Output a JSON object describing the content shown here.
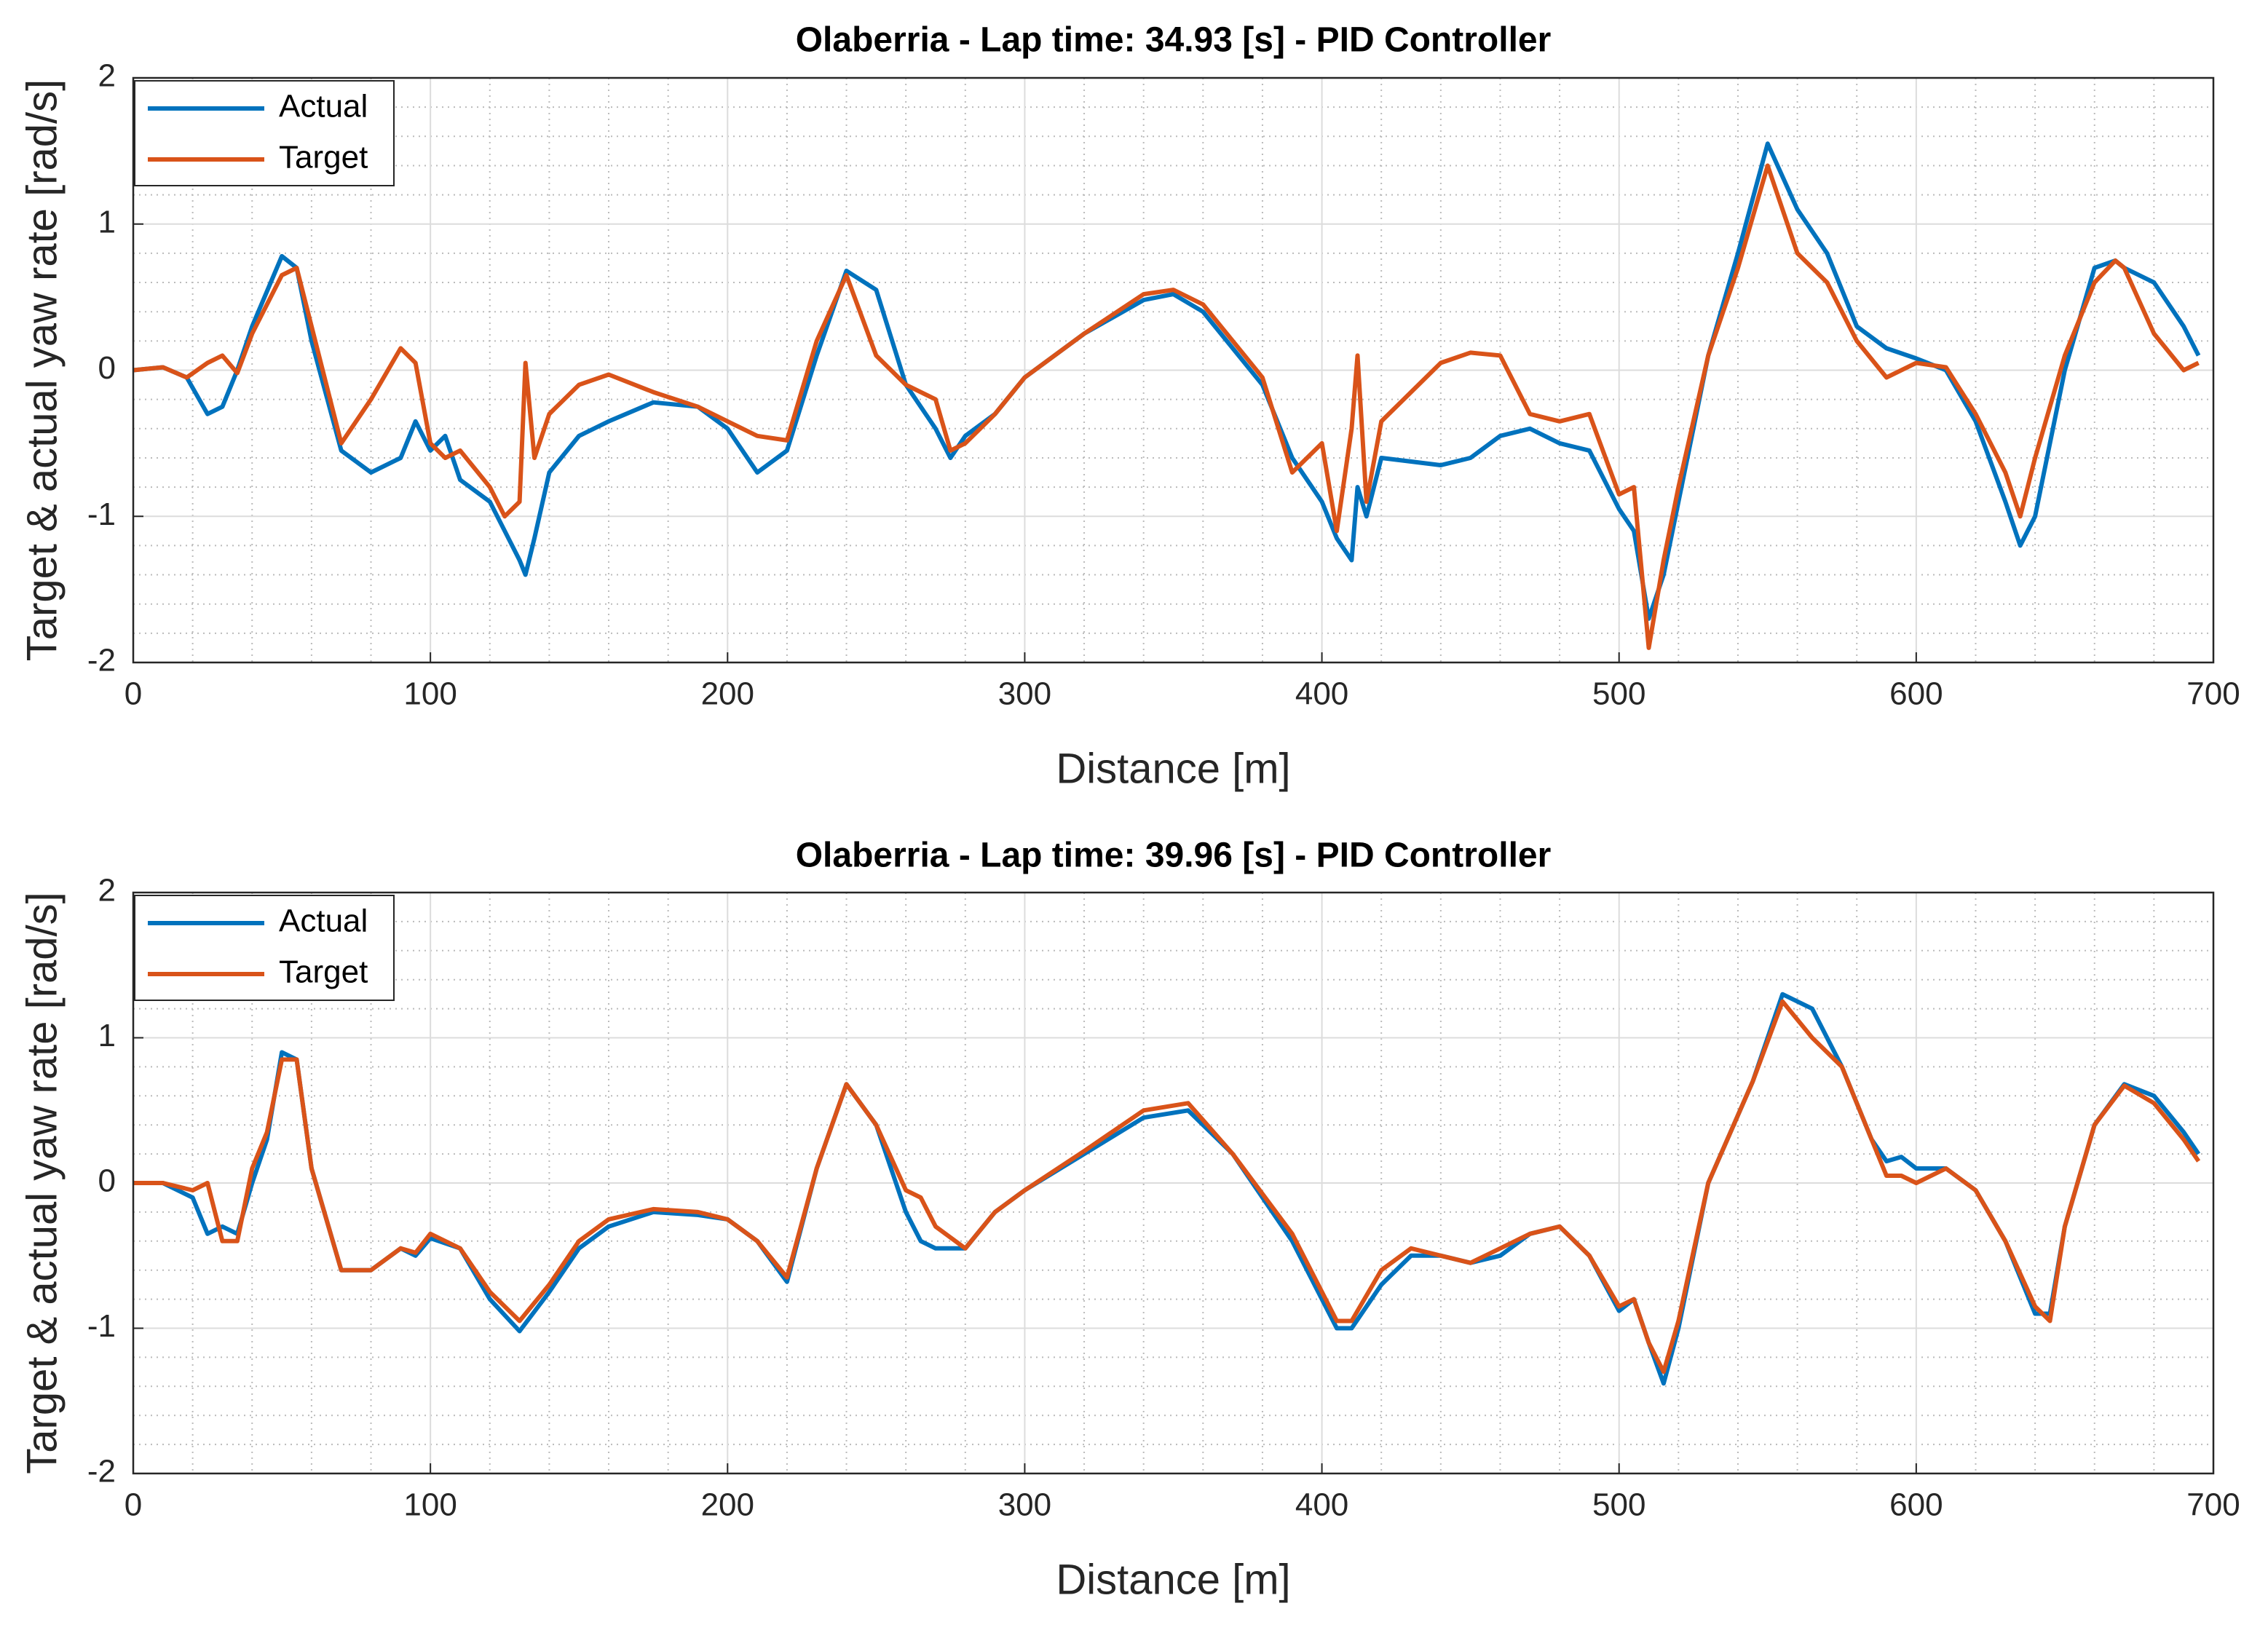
{
  "chart_data": [
    {
      "type": "line",
      "title": "Olaberria - Lap time: 34.93 [s] - PID Controller",
      "x_label": "Distance [m]",
      "y_label": "Target & actual yaw rate [rad/s]",
      "xlim": [
        0,
        700
      ],
      "xticks": [
        0,
        100,
        200,
        300,
        400,
        500,
        600,
        700
      ],
      "ylim": [
        -2,
        2
      ],
      "yticks": [
        -2,
        -1,
        0,
        1,
        2
      ],
      "grid": true,
      "minor_grid": true,
      "legend": "upper left",
      "x": [
        0,
        10,
        18,
        25,
        30,
        35,
        40,
        50,
        55,
        60,
        70,
        80,
        90,
        95,
        100,
        105,
        110,
        120,
        125,
        130,
        132,
        135,
        140,
        150,
        160,
        175,
        190,
        200,
        210,
        220,
        230,
        240,
        250,
        260,
        270,
        275,
        280,
        290,
        300,
        320,
        340,
        350,
        360,
        380,
        390,
        400,
        405,
        410,
        412,
        415,
        420,
        440,
        450,
        460,
        470,
        480,
        490,
        500,
        505,
        510,
        515,
        520,
        530,
        540,
        550,
        560,
        570,
        580,
        590,
        600,
        610,
        620,
        630,
        635,
        640,
        650,
        660,
        667,
        670,
        680,
        690,
        695
      ],
      "series": [
        {
          "name": "Actual",
          "color": "#0072BD",
          "values": [
            0,
            0.02,
            -0.05,
            -0.3,
            -0.25,
            0,
            0.3,
            0.78,
            0.7,
            0.2,
            -0.55,
            -0.7,
            -0.6,
            -0.35,
            -0.55,
            -0.45,
            -0.75,
            -0.9,
            -1.1,
            -1.3,
            -1.4,
            -1.15,
            -0.7,
            -0.45,
            -0.35,
            -0.22,
            -0.25,
            -0.4,
            -0.7,
            -0.55,
            0.1,
            0.68,
            0.55,
            -0.1,
            -0.4,
            -0.6,
            -0.45,
            -0.3,
            -0.05,
            0.25,
            0.48,
            0.52,
            0.4,
            -0.1,
            -0.6,
            -0.9,
            -1.15,
            -1.3,
            -0.8,
            -1.0,
            -0.6,
            -0.65,
            -0.6,
            -0.45,
            -0.4,
            -0.5,
            -0.55,
            -0.95,
            -1.1,
            -1.7,
            -1.4,
            -0.9,
            0.1,
            0.8,
            1.55,
            1.1,
            0.8,
            0.3,
            0.15,
            0.08,
            0.0,
            -0.35,
            -0.9,
            -1.2,
            -1.0,
            0.0,
            0.7,
            0.75,
            0.7,
            0.6,
            0.3,
            0.1
          ]
        },
        {
          "name": "Target",
          "color": "#D95319",
          "values": [
            0,
            0.02,
            -0.05,
            0.05,
            0.1,
            -0.02,
            0.25,
            0.65,
            0.7,
            0.3,
            -0.5,
            -0.2,
            0.15,
            0.05,
            -0.5,
            -0.6,
            -0.55,
            -0.8,
            -1.0,
            -0.9,
            0.05,
            -0.6,
            -0.3,
            -0.1,
            -0.03,
            -0.15,
            -0.25,
            -0.35,
            -0.45,
            -0.48,
            0.2,
            0.65,
            0.1,
            -0.1,
            -0.2,
            -0.55,
            -0.5,
            -0.3,
            -0.05,
            0.25,
            0.52,
            0.55,
            0.45,
            -0.05,
            -0.7,
            -0.5,
            -1.1,
            -0.4,
            0.1,
            -0.9,
            -0.35,
            0.05,
            0.12,
            0.1,
            -0.3,
            -0.35,
            -0.3,
            -0.85,
            -0.8,
            -1.9,
            -1.3,
            -0.8,
            0.1,
            0.7,
            1.4,
            0.8,
            0.6,
            0.2,
            -0.05,
            0.05,
            0.02,
            -0.3,
            -0.7,
            -1.0,
            -0.6,
            0.1,
            0.6,
            0.75,
            0.7,
            0.25,
            0.0,
            0.05
          ]
        }
      ]
    },
    {
      "type": "line",
      "title": "Olaberria - Lap time: 39.96 [s] - PID Controller",
      "x_label": "Distance [m]",
      "y_label": "Target & actual yaw rate [rad/s]",
      "xlim": [
        0,
        700
      ],
      "xticks": [
        0,
        100,
        200,
        300,
        400,
        500,
        600,
        700
      ],
      "ylim": [
        -2,
        2
      ],
      "yticks": [
        -2,
        -1,
        0,
        1,
        2
      ],
      "grid": true,
      "minor_grid": true,
      "legend": "upper left",
      "x": [
        0,
        10,
        20,
        25,
        30,
        35,
        40,
        45,
        50,
        55,
        60,
        70,
        80,
        90,
        95,
        100,
        110,
        120,
        130,
        140,
        150,
        160,
        175,
        190,
        200,
        210,
        220,
        230,
        240,
        250,
        260,
        265,
        270,
        280,
        290,
        300,
        320,
        340,
        355,
        370,
        390,
        400,
        405,
        410,
        420,
        430,
        440,
        450,
        460,
        470,
        480,
        490,
        500,
        505,
        510,
        515,
        520,
        530,
        545,
        555,
        565,
        575,
        585,
        590,
        595,
        600,
        610,
        620,
        630,
        640,
        645,
        650,
        660,
        670,
        680,
        690,
        695
      ],
      "series": [
        {
          "name": "Actual",
          "color": "#0072BD",
          "values": [
            0,
            0,
            -0.1,
            -0.35,
            -0.3,
            -0.35,
            0,
            0.3,
            0.9,
            0.85,
            0.1,
            -0.6,
            -0.6,
            -0.45,
            -0.5,
            -0.38,
            -0.45,
            -0.8,
            -1.02,
            -0.75,
            -0.45,
            -0.3,
            -0.2,
            -0.22,
            -0.25,
            -0.4,
            -0.68,
            0.1,
            0.68,
            0.4,
            -0.2,
            -0.4,
            -0.45,
            -0.45,
            -0.2,
            -0.05,
            0.2,
            0.45,
            0.5,
            0.2,
            -0.4,
            -0.8,
            -1.0,
            -1.0,
            -0.7,
            -0.5,
            -0.5,
            -0.55,
            -0.5,
            -0.35,
            -0.3,
            -0.5,
            -0.88,
            -0.8,
            -1.1,
            -1.38,
            -1.0,
            0,
            0.7,
            1.3,
            1.2,
            0.8,
            0.3,
            0.15,
            0.18,
            0.1,
            0.1,
            -0.05,
            -0.4,
            -0.9,
            -0.9,
            -0.3,
            0.4,
            0.68,
            0.6,
            0.35,
            0.2
          ]
        },
        {
          "name": "Target",
          "color": "#D95319",
          "values": [
            0,
            0,
            -0.05,
            0,
            -0.4,
            -0.4,
            0.1,
            0.35,
            0.85,
            0.85,
            0.1,
            -0.6,
            -0.6,
            -0.45,
            -0.48,
            -0.35,
            -0.45,
            -0.75,
            -0.95,
            -0.7,
            -0.4,
            -0.25,
            -0.18,
            -0.2,
            -0.25,
            -0.4,
            -0.65,
            0.1,
            0.68,
            0.4,
            -0.05,
            -0.1,
            -0.3,
            -0.45,
            -0.2,
            -0.05,
            0.22,
            0.5,
            0.55,
            0.2,
            -0.35,
            -0.75,
            -0.95,
            -0.95,
            -0.6,
            -0.45,
            -0.5,
            -0.55,
            -0.45,
            -0.35,
            -0.3,
            -0.5,
            -0.85,
            -0.8,
            -1.1,
            -1.3,
            -0.95,
            0,
            0.7,
            1.25,
            1.0,
            0.8,
            0.3,
            0.05,
            0.05,
            0,
            0.1,
            -0.05,
            -0.4,
            -0.85,
            -0.95,
            -0.3,
            0.4,
            0.67,
            0.55,
            0.3,
            0.15
          ]
        }
      ]
    }
  ]
}
